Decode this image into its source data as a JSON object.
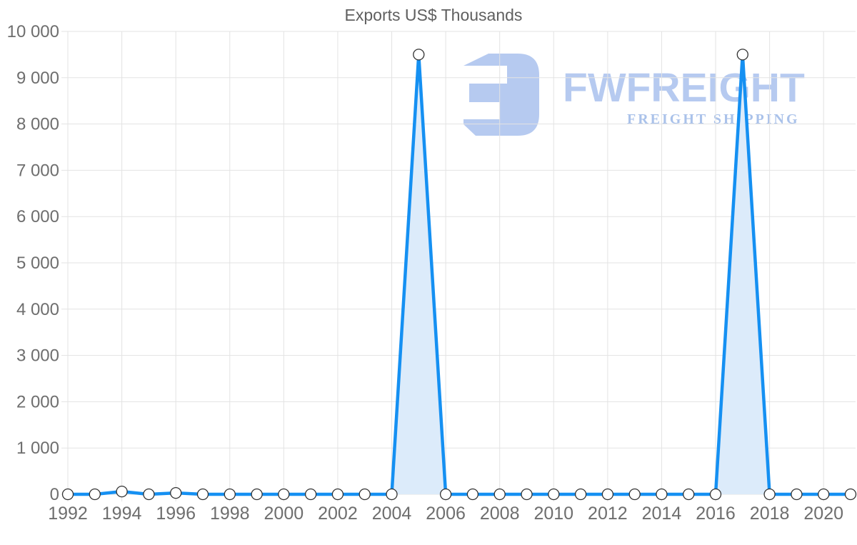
{
  "title": "Exports US$ Thousands",
  "watermark": {
    "brand": "FWFREIGHT",
    "tagline": "FREIGHT SHIPPING",
    "logo_color": "#b3c8f0",
    "tagline_color": "#a6bfe9"
  },
  "colors": {
    "line": "#1590f2",
    "area_fill": "#dcebfa",
    "grid": "#e3e3e3",
    "axis_label": "#6e6e6e",
    "title_text": "#5f5f5f",
    "marker_fill": "#ffffff",
    "marker_stroke": "#333333"
  },
  "chart_data": {
    "type": "area",
    "title": "Exports US$ Thousands",
    "series_name": "Exports US$ Thousands",
    "x": [
      1992,
      1993,
      1994,
      1995,
      1996,
      1997,
      1998,
      1999,
      2000,
      2001,
      2002,
      2003,
      2004,
      2005,
      2006,
      2007,
      2008,
      2009,
      2010,
      2011,
      2012,
      2013,
      2014,
      2015,
      2016,
      2017,
      2018,
      2019,
      2020,
      2021
    ],
    "values": [
      0,
      0,
      60,
      0,
      30,
      0,
      0,
      0,
      0,
      0,
      0,
      0,
      0,
      9500,
      0,
      0,
      0,
      0,
      0,
      0,
      0,
      0,
      0,
      0,
      0,
      9500,
      0,
      0,
      0,
      0
    ],
    "ylim": [
      0,
      10000
    ],
    "y_tick_step": 1000,
    "y_tick_labels": [
      "0",
      "1 000",
      "2 000",
      "3 000",
      "4 000",
      "5 000",
      "6 000",
      "7 000",
      "8 000",
      "9 000",
      "10 000"
    ],
    "x_tick_years": [
      1992,
      1994,
      1996,
      1998,
      2000,
      2002,
      2004,
      2006,
      2008,
      2010,
      2012,
      2014,
      2016,
      2018,
      2020
    ],
    "grid": true,
    "legend": "none",
    "marker": "circle"
  }
}
